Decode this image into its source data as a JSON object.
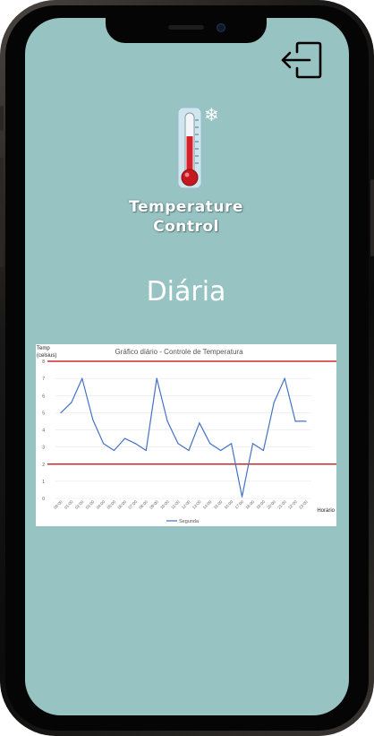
{
  "header": {
    "logout_icon": "logout-icon",
    "app_icon": "thermometer-icon",
    "snow_icon": "snowflake-icon",
    "title_line1": "Temperature",
    "title_line2": "Control"
  },
  "main": {
    "section_title": "Diária"
  },
  "colors": {
    "background": "#97c3c2",
    "series": "#4472c4",
    "limit": "#c00000"
  },
  "chart_data": {
    "type": "line",
    "title": "Gráfico diário - Controle de Temperatura",
    "ylabel_line1": "Temp",
    "ylabel_line2": "(celsius)",
    "xlabel": "Horário",
    "ylim": [
      0,
      8
    ],
    "yticks": [
      "0",
      "1",
      "2",
      "3",
      "4",
      "5",
      "6",
      "7",
      "8"
    ],
    "x": [
      "00:00",
      "01:00",
      "02:00",
      "03:00",
      "04:00",
      "05:00",
      "06:00",
      "07:00",
      "08:00",
      "09:00",
      "10:00",
      "11:00",
      "12:00",
      "13:00",
      "14:00",
      "15:00",
      "16:00",
      "17:00",
      "18:00",
      "19:00",
      "20:00",
      "21:00",
      "22:00",
      "23:00"
    ],
    "series": [
      {
        "name": "Segunda",
        "values": [
          5.0,
          5.6,
          7.0,
          4.6,
          3.2,
          2.8,
          3.5,
          3.2,
          2.8,
          7.0,
          4.5,
          3.2,
          2.8,
          4.4,
          3.2,
          2.8,
          3.2,
          0.1,
          3.2,
          2.8,
          5.6,
          7.0,
          4.5,
          4.5
        ]
      }
    ],
    "limits": [
      {
        "value": 8
      },
      {
        "value": 2
      }
    ],
    "grid": true,
    "legend_position": "bottom"
  }
}
